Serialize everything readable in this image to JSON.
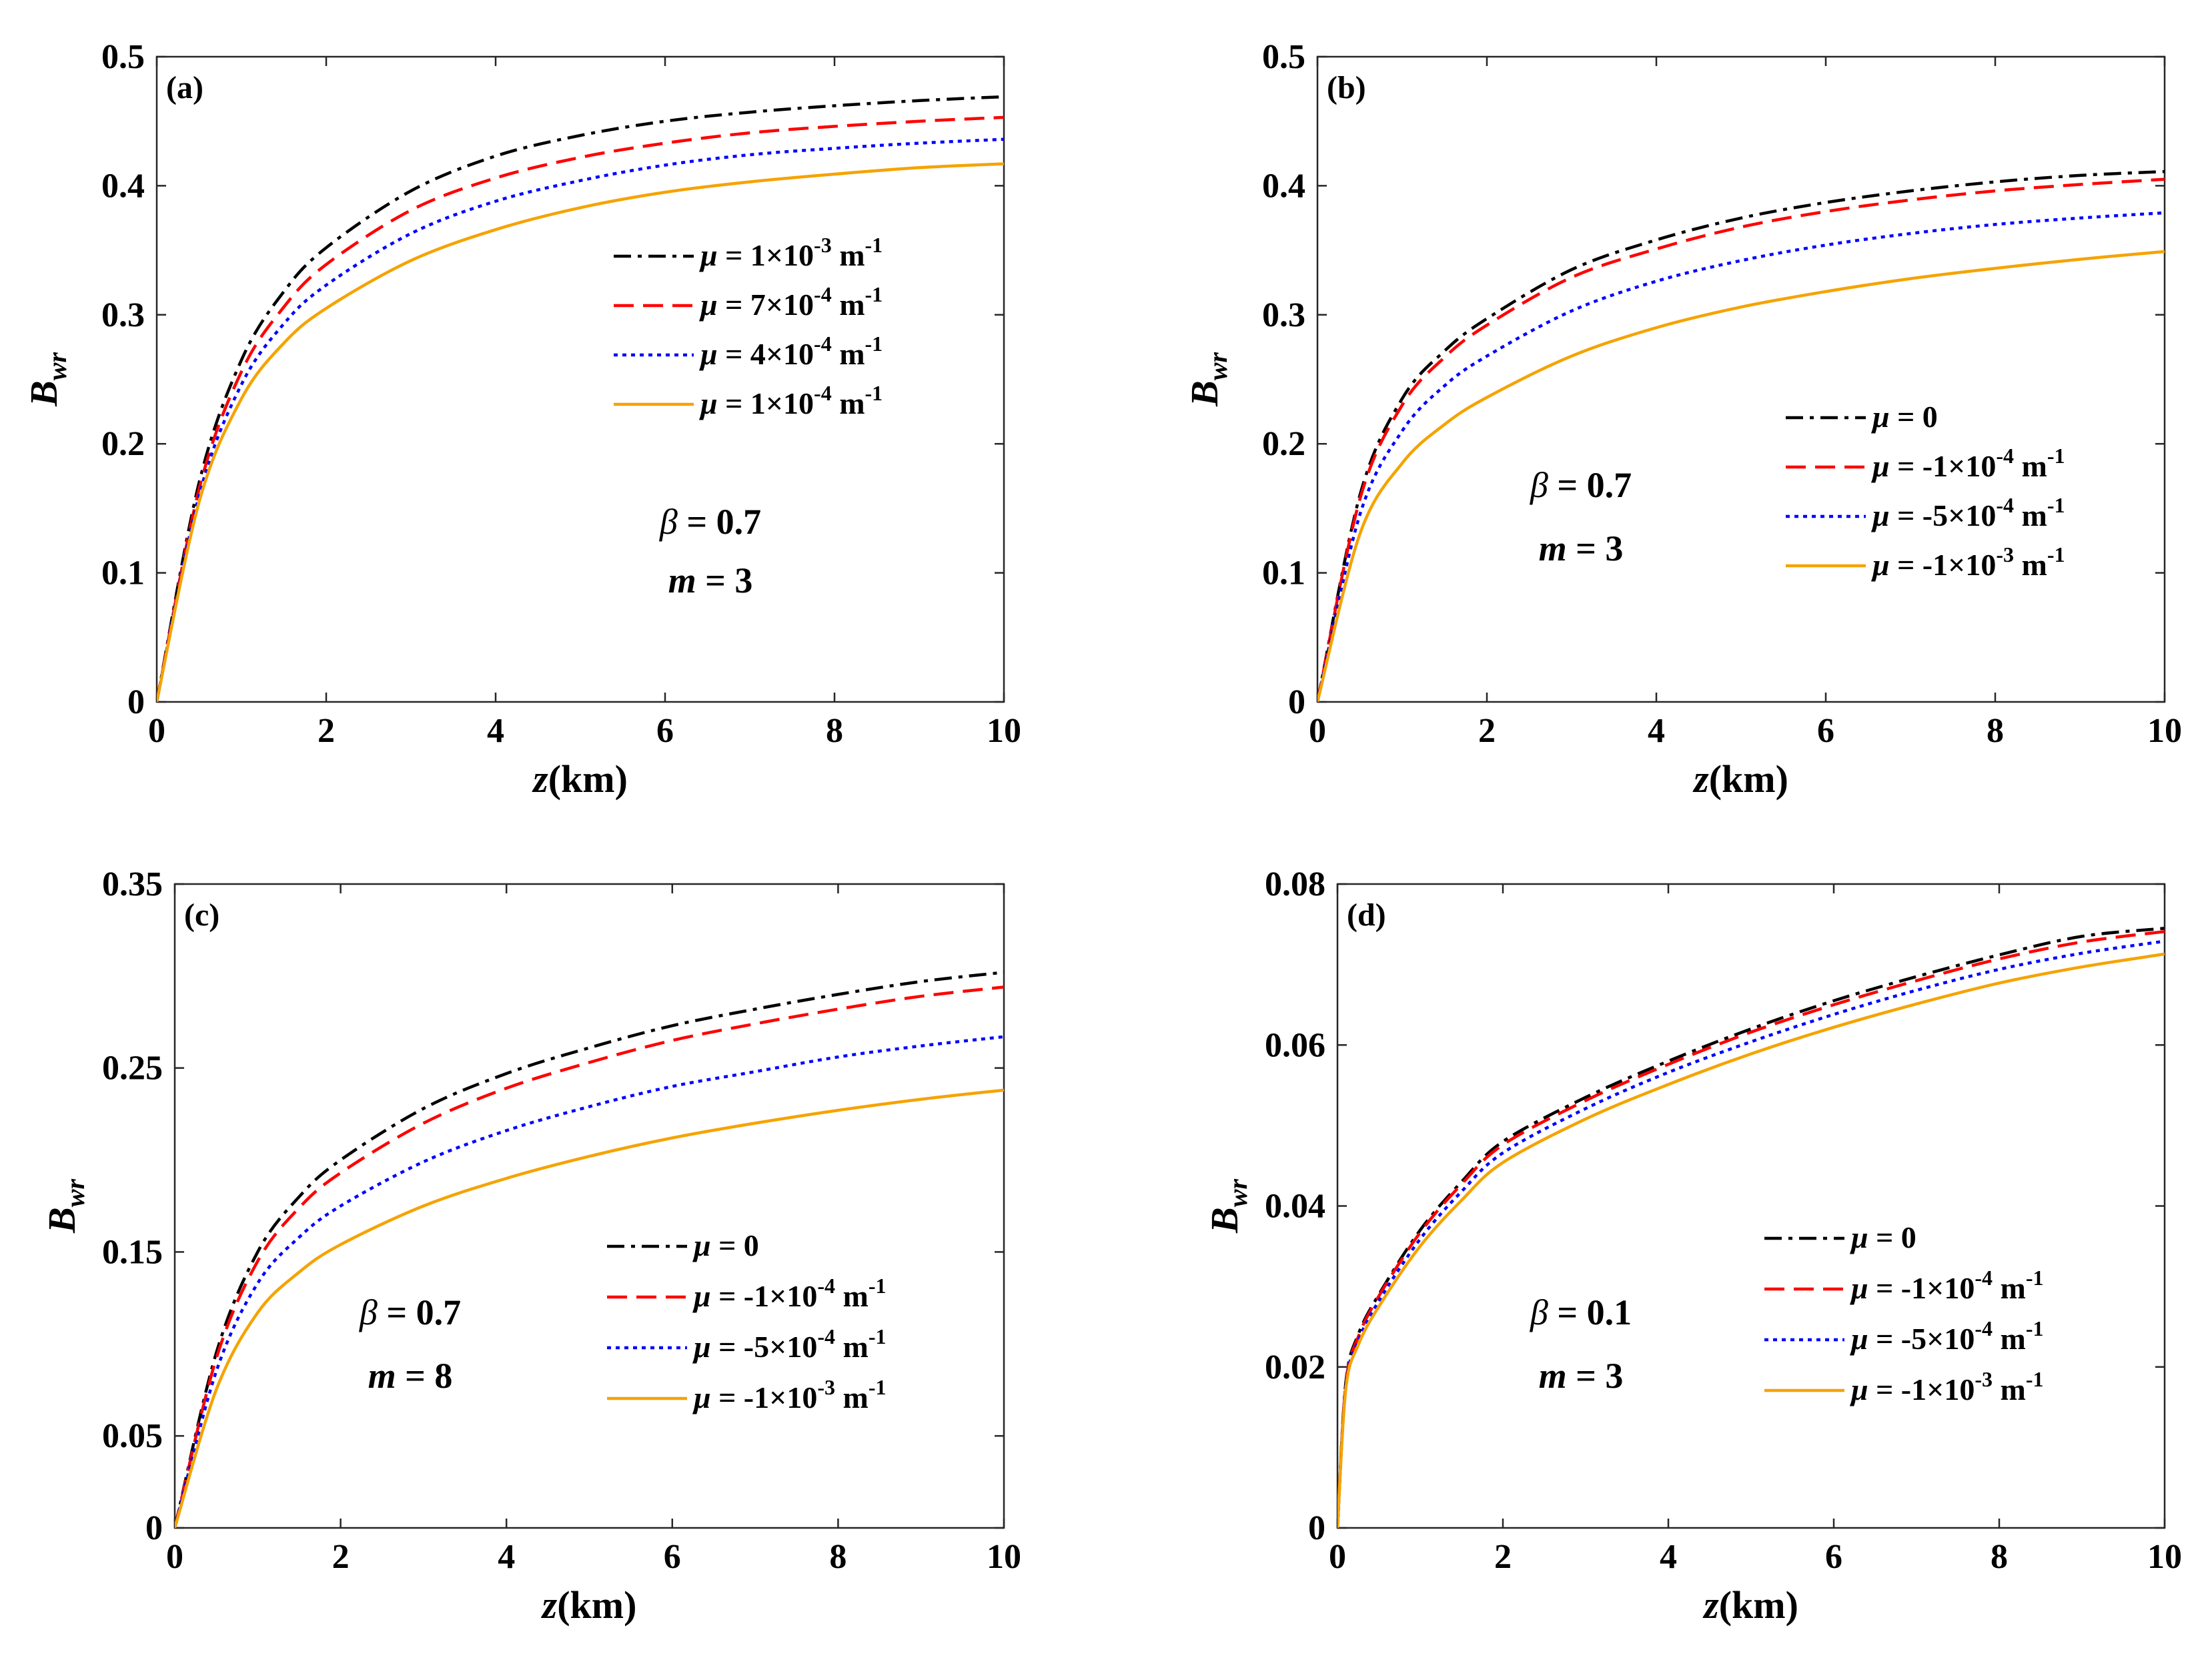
{
  "figure": {
    "background": "#ffffff"
  },
  "chart_data": [
    {
      "id": "a",
      "type": "line",
      "panel_label": "(a)",
      "xlabel": "z(km)",
      "ylabel": "B",
      "ylabel_sub": "wr",
      "xlim": [
        0,
        10
      ],
      "ylim": [
        0,
        0.5
      ],
      "xticks": [
        0,
        2,
        4,
        6,
        8,
        10
      ],
      "xtick_labels": [
        "0",
        "2",
        "4",
        "6",
        "8",
        "10"
      ],
      "yticks": [
        0,
        0.1,
        0.2,
        0.3,
        0.4,
        0.5
      ],
      "ytick_labels": [
        "0",
        "0.1",
        "0.2",
        "0.3",
        "0.4",
        "0.5"
      ],
      "x": [
        0,
        0.5,
        1,
        1.5,
        2,
        3,
        4,
        5,
        6,
        7,
        8,
        9,
        10
      ],
      "series": [
        {
          "name": "μ = 1×10⁻³ m⁻¹",
          "prefix": "= 1",
          "exp": "-3",
          "color": "#000000",
          "style": "dashdot",
          "values": [
            0,
            0.17,
            0.265,
            0.318,
            0.352,
            0.396,
            0.423,
            0.439,
            0.45,
            0.457,
            0.462,
            0.466,
            0.469
          ]
        },
        {
          "name": "μ = 7×10⁻⁴ m⁻¹",
          "prefix": "= 7",
          "exp": "-4",
          "color": "#ff0000",
          "style": "dashed",
          "values": [
            0,
            0.165,
            0.256,
            0.306,
            0.339,
            0.381,
            0.406,
            0.422,
            0.433,
            0.441,
            0.446,
            0.45,
            0.453
          ]
        },
        {
          "name": "μ = 4×10⁻⁴ m⁻¹",
          "prefix": "= 4",
          "exp": "-4",
          "color": "#0000ff",
          "style": "dotted",
          "values": [
            0,
            0.16,
            0.246,
            0.293,
            0.323,
            0.363,
            0.388,
            0.404,
            0.416,
            0.424,
            0.429,
            0.433,
            0.436
          ]
        },
        {
          "name": "μ = 1×10⁻⁴ m⁻¹",
          "prefix": "= 1",
          "exp": "-4",
          "color": "#f5a300",
          "style": "solid",
          "values": [
            0,
            0.155,
            0.235,
            0.278,
            0.305,
            0.342,
            0.366,
            0.383,
            0.395,
            0.403,
            0.409,
            0.414,
            0.417
          ]
        }
      ],
      "annotations": {
        "beta_value": "= 0.7",
        "m_value": "= 3"
      }
    },
    {
      "id": "b",
      "type": "line",
      "panel_label": "(b)",
      "xlabel": "z(km)",
      "ylabel": "B",
      "ylabel_sub": "wr",
      "xlim": [
        0,
        10
      ],
      "ylim": [
        0,
        0.5
      ],
      "xticks": [
        0,
        2,
        4,
        6,
        8,
        10
      ],
      "xtick_labels": [
        "0",
        "2",
        "4",
        "6",
        "8",
        "10"
      ],
      "yticks": [
        0,
        0.1,
        0.2,
        0.3,
        0.4,
        0.5
      ],
      "ytick_labels": [
        "0",
        "0.1",
        "0.2",
        "0.3",
        "0.4",
        "0.5"
      ],
      "x": [
        0,
        0.5,
        1,
        1.5,
        2,
        3,
        4,
        5,
        6,
        7,
        8,
        9,
        10
      ],
      "series": [
        {
          "name": "μ = 0",
          "prefix": "= 0",
          "exp": "",
          "color": "#000000",
          "style": "dashdot",
          "values": [
            0,
            0.16,
            0.235,
            0.272,
            0.297,
            0.335,
            0.358,
            0.375,
            0.387,
            0.396,
            0.403,
            0.408,
            0.411
          ]
        },
        {
          "name": "μ = -1×10⁻⁴ m⁻¹",
          "prefix": "= -1",
          "exp": "-4",
          "color": "#ff0000",
          "style": "dashed",
          "values": [
            0,
            0.157,
            0.23,
            0.267,
            0.292,
            0.329,
            0.351,
            0.368,
            0.38,
            0.389,
            0.396,
            0.401,
            0.405
          ]
        },
        {
          "name": "μ = -5×10⁻⁴ m⁻¹",
          "prefix": "= -5",
          "exp": "-4",
          "color": "#0000ff",
          "style": "dotted",
          "values": [
            0,
            0.145,
            0.21,
            0.245,
            0.268,
            0.303,
            0.326,
            0.342,
            0.354,
            0.363,
            0.37,
            0.375,
            0.379
          ]
        },
        {
          "name": "μ = -1×10⁻³ m⁻¹",
          "prefix": "= -1",
          "exp": "-3",
          "color": "#f5a300",
          "style": "solid",
          "values": [
            0,
            0.13,
            0.185,
            0.215,
            0.236,
            0.268,
            0.29,
            0.306,
            0.318,
            0.328,
            0.336,
            0.343,
            0.349
          ]
        }
      ],
      "annotations": {
        "beta_value": "= 0.7",
        "m_value": "= 3"
      }
    },
    {
      "id": "c",
      "type": "line",
      "panel_label": "(c)",
      "xlabel": "z(km)",
      "ylabel": "B",
      "ylabel_sub": "wr",
      "xlim": [
        0,
        10
      ],
      "ylim": [
        0,
        0.35
      ],
      "xticks": [
        0,
        2,
        4,
        6,
        8,
        10
      ],
      "xtick_labels": [
        "0",
        "2",
        "4",
        "6",
        "8",
        "10"
      ],
      "yticks": [
        0,
        0.05,
        0.15,
        0.25,
        0.35
      ],
      "ytick_labels": [
        "0",
        "0.05",
        "0.15",
        "0.25",
        "0.35"
      ],
      "x": [
        0,
        0.5,
        1,
        1.5,
        2,
        3,
        4,
        5,
        6,
        7,
        8,
        9,
        10
      ],
      "series": [
        {
          "name": "μ = 0",
          "prefix": "= 0",
          "exp": "",
          "color": "#000000",
          "style": "dashdot",
          "values": [
            0,
            0.095,
            0.15,
            0.18,
            0.2,
            0.228,
            0.247,
            0.261,
            0.273,
            0.282,
            0.29,
            0.297,
            0.302
          ]
        },
        {
          "name": "μ = -1×10⁻⁴ m⁻¹",
          "prefix": "= -1",
          "exp": "-4",
          "color": "#ff0000",
          "style": "dashed",
          "values": [
            0,
            0.092,
            0.145,
            0.174,
            0.193,
            0.22,
            0.239,
            0.253,
            0.265,
            0.274,
            0.282,
            0.289,
            0.294
          ]
        },
        {
          "name": "μ = -5×10⁻⁴ m⁻¹",
          "prefix": "= -5",
          "exp": "-4",
          "color": "#0000ff",
          "style": "dotted",
          "values": [
            0,
            0.085,
            0.133,
            0.158,
            0.175,
            0.199,
            0.216,
            0.229,
            0.24,
            0.248,
            0.256,
            0.262,
            0.267
          ]
        },
        {
          "name": "μ = -1×10⁻³ m⁻¹",
          "prefix": "= -1",
          "exp": "-3",
          "color": "#f5a300",
          "style": "solid",
          "values": [
            0,
            0.075,
            0.117,
            0.139,
            0.154,
            0.175,
            0.19,
            0.202,
            0.212,
            0.22,
            0.227,
            0.233,
            0.238
          ]
        }
      ],
      "annotations": {
        "beta_value": "= 0.7",
        "m_value": "= 8"
      }
    },
    {
      "id": "d",
      "type": "line",
      "panel_label": "(d)",
      "xlabel": "z(km)",
      "ylabel": "B",
      "ylabel_sub": "wr",
      "xlim": [
        0,
        10
      ],
      "ylim": [
        0,
        0.08
      ],
      "xticks": [
        0,
        2,
        4,
        6,
        8,
        10
      ],
      "xtick_labels": [
        "0",
        "2",
        "4",
        "6",
        "8",
        "10"
      ],
      "yticks": [
        0,
        0.02,
        0.04,
        0.06,
        0.08
      ],
      "ytick_labels": [
        "0",
        "0.02",
        "0.04",
        "0.06",
        "0.08"
      ],
      "x": [
        0,
        0.1,
        0.25,
        0.5,
        1,
        1.5,
        2,
        3,
        4,
        5,
        6,
        7,
        8,
        9,
        10
      ],
      "series": [
        {
          "name": "μ = 0",
          "prefix": "= 0",
          "exp": "",
          "color": "#000000",
          "style": "dashdot",
          "values": [
            0,
            0.018,
            0.024,
            0.029,
            0.037,
            0.043,
            0.048,
            0.0535,
            0.058,
            0.062,
            0.0655,
            0.0685,
            0.0712,
            0.0735,
            0.0745
          ]
        },
        {
          "name": "μ = -1×10⁻⁴ m⁻¹",
          "prefix": "= -1",
          "exp": "-4",
          "color": "#ff0000",
          "style": "dashed",
          "values": [
            0,
            0.0178,
            0.0237,
            0.0288,
            0.0367,
            0.0427,
            0.0476,
            0.0531,
            0.0576,
            0.0616,
            0.065,
            0.068,
            0.0707,
            0.0728,
            0.0741
          ]
        },
        {
          "name": "μ = -5×10⁻⁴ m⁻¹",
          "prefix": "= -5",
          "exp": "-4",
          "color": "#0000ff",
          "style": "dotted",
          "values": [
            0,
            0.0175,
            0.0232,
            0.0282,
            0.0359,
            0.0418,
            0.0466,
            0.0521,
            0.0566,
            0.0604,
            0.0638,
            0.0668,
            0.0694,
            0.0714,
            0.0729
          ]
        },
        {
          "name": "μ = -1×10⁻³ m⁻¹",
          "prefix": "= -1",
          "exp": "-3",
          "color": "#f5a300",
          "style": "solid",
          "values": [
            0,
            0.0172,
            0.0227,
            0.0275,
            0.035,
            0.0407,
            0.0454,
            0.0508,
            0.0551,
            0.0589,
            0.0622,
            0.0651,
            0.0677,
            0.0697,
            0.0713
          ]
        }
      ],
      "annotations": {
        "beta_value": "= 0.1",
        "m_value": "= 3"
      }
    }
  ]
}
